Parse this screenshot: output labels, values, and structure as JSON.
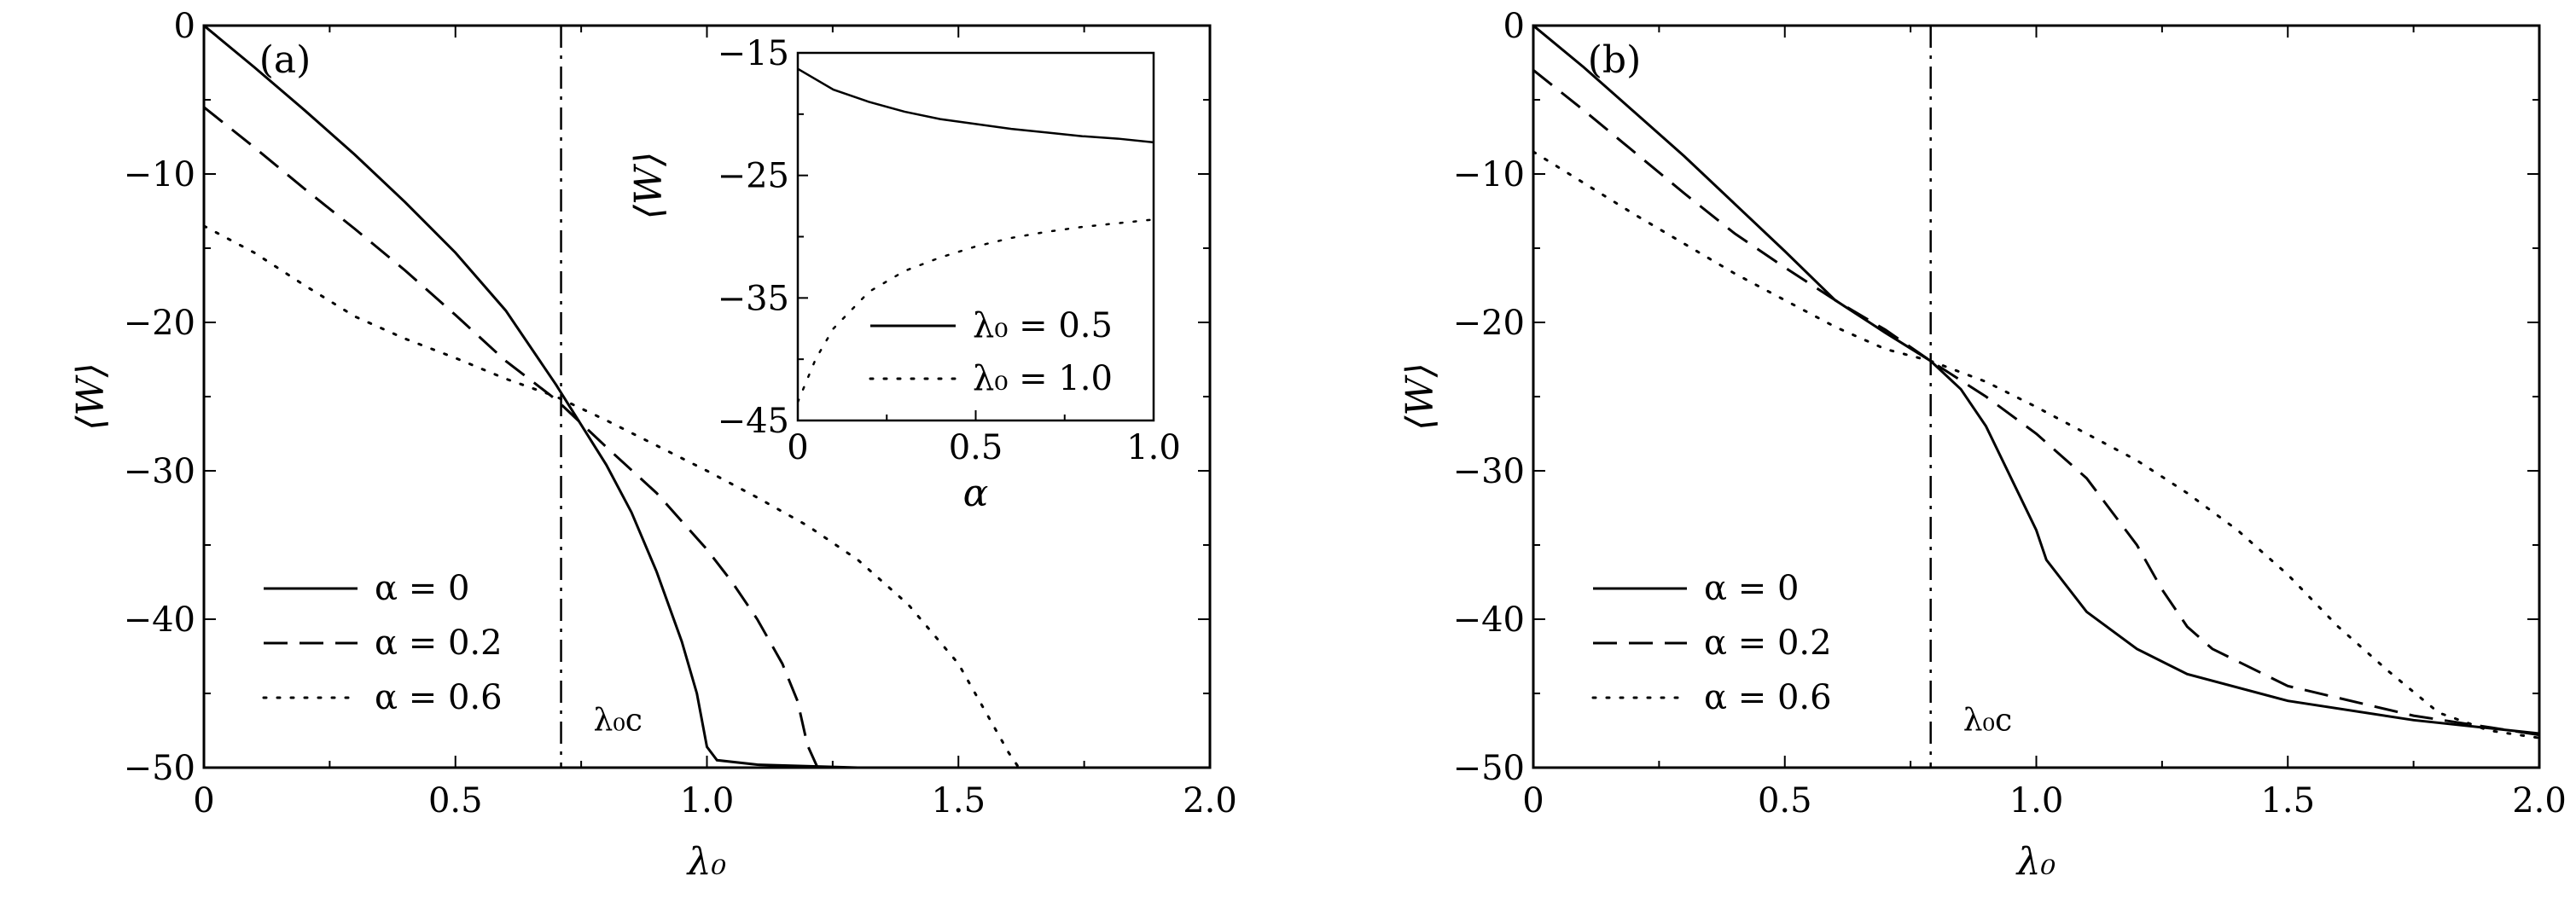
{
  "chart_data": [
    {
      "panel": "(a)",
      "type": "line",
      "xlabel": "λ₀",
      "ylabel": "⟨W⟩",
      "xlim": [
        0,
        2.0
      ],
      "ylim": [
        -50,
        0
      ],
      "xticks": [
        0,
        0.5,
        1.0,
        1.5,
        2.0
      ],
      "xtick_labels": [
        "0",
        "0.5",
        "1.0",
        "1.5",
        "2.0"
      ],
      "yticks": [
        0,
        -10,
        -20,
        -30,
        -40,
        -50
      ],
      "ytick_labels": [
        "0",
        "−10",
        "−20",
        "−30",
        "−40",
        "−50"
      ],
      "legend_position": "lower-left",
      "vline": {
        "x": 0.71,
        "label": "λ₀c"
      },
      "series": [
        {
          "name": "α = 0",
          "style": "solid",
          "points": [
            [
              0,
              0
            ],
            [
              0.1,
              -2.8
            ],
            [
              0.2,
              -5.7
            ],
            [
              0.3,
              -8.7
            ],
            [
              0.4,
              -11.9
            ],
            [
              0.5,
              -15.3
            ],
            [
              0.6,
              -19.2
            ],
            [
              0.7,
              -24.2
            ],
            [
              0.8,
              -29.6
            ],
            [
              0.85,
              -32.8
            ],
            [
              0.9,
              -36.8
            ],
            [
              0.95,
              -41.5
            ],
            [
              0.98,
              -45.0
            ],
            [
              1.0,
              -48.6
            ],
            [
              1.02,
              -49.5
            ],
            [
              1.1,
              -49.8
            ],
            [
              1.3,
              -50.0
            ],
            [
              1.6,
              -50.0
            ],
            [
              1.9,
              -50.0
            ]
          ]
        },
        {
          "name": "α = 0.2",
          "style": "dashed",
          "points": [
            [
              0,
              -5.5
            ],
            [
              0.1,
              -8.2
            ],
            [
              0.2,
              -11.0
            ],
            [
              0.3,
              -13.7
            ],
            [
              0.4,
              -16.5
            ],
            [
              0.5,
              -19.5
            ],
            [
              0.6,
              -22.6
            ],
            [
              0.7,
              -25.2
            ],
            [
              0.8,
              -28.4
            ],
            [
              0.9,
              -31.5
            ],
            [
              1.0,
              -35.3
            ],
            [
              1.05,
              -37.5
            ],
            [
              1.1,
              -40.0
            ],
            [
              1.15,
              -43.0
            ],
            [
              1.18,
              -45.5
            ],
            [
              1.2,
              -48.5
            ],
            [
              1.22,
              -50.0
            ],
            [
              1.4,
              -50.0
            ],
            [
              1.9,
              -50.0
            ]
          ]
        },
        {
          "name": "α = 0.6",
          "style": "dotted",
          "points": [
            [
              0,
              -13.5
            ],
            [
              0.1,
              -15.3
            ],
            [
              0.2,
              -17.5
            ],
            [
              0.3,
              -19.6
            ],
            [
              0.4,
              -21.1
            ],
            [
              0.5,
              -22.4
            ],
            [
              0.6,
              -23.8
            ],
            [
              0.7,
              -25.0
            ],
            [
              0.8,
              -26.6
            ],
            [
              0.9,
              -28.3
            ],
            [
              1.0,
              -30.0
            ],
            [
              1.1,
              -31.8
            ],
            [
              1.2,
              -33.7
            ],
            [
              1.3,
              -36.0
            ],
            [
              1.4,
              -39.0
            ],
            [
              1.5,
              -43.0
            ],
            [
              1.55,
              -46.0
            ],
            [
              1.6,
              -49.0
            ],
            [
              1.62,
              -50.0
            ]
          ]
        }
      ],
      "inset": {
        "xlabel": "α",
        "ylabel": "⟨W⟩",
        "xlim": [
          0,
          1.0
        ],
        "ylim": [
          -45,
          -15
        ],
        "xticks": [
          0,
          0.5,
          1.0
        ],
        "xtick_labels": [
          "0",
          "0.5",
          "1.0"
        ],
        "yticks": [
          -15,
          -25,
          -35,
          -45
        ],
        "ytick_labels": [
          "−15",
          "−25",
          "−35",
          "−45"
        ],
        "legend_position": "lower-right",
        "series": [
          {
            "name": "λ₀ = 0.5",
            "style": "solid",
            "points": [
              [
                0,
                -16.3
              ],
              [
                0.1,
                -18.0
              ],
              [
                0.2,
                -19.0
              ],
              [
                0.3,
                -19.8
              ],
              [
                0.4,
                -20.4
              ],
              [
                0.5,
                -20.8
              ],
              [
                0.6,
                -21.2
              ],
              [
                0.7,
                -21.5
              ],
              [
                0.8,
                -21.8
              ],
              [
                0.9,
                -22.0
              ],
              [
                1.0,
                -22.3
              ]
            ]
          },
          {
            "name": "λ₀ = 1.0",
            "style": "dotted",
            "points": [
              [
                0,
                -43.5
              ],
              [
                0.05,
                -40.0
              ],
              [
                0.1,
                -37.5
              ],
              [
                0.2,
                -34.5
              ],
              [
                0.3,
                -32.8
              ],
              [
                0.4,
                -31.7
              ],
              [
                0.5,
                -30.8
              ],
              [
                0.6,
                -30.1
              ],
              [
                0.7,
                -29.6
              ],
              [
                0.8,
                -29.2
              ],
              [
                0.9,
                -28.9
              ],
              [
                1.0,
                -28.6
              ]
            ]
          }
        ]
      }
    },
    {
      "panel": "(b)",
      "type": "line",
      "xlabel": "λ₀",
      "ylabel": "⟨W⟩",
      "xlim": [
        0,
        2.0
      ],
      "ylim": [
        -50,
        0
      ],
      "xticks": [
        0,
        0.5,
        1.0,
        1.5,
        2.0
      ],
      "xtick_labels": [
        "0",
        "0.5",
        "1.0",
        "1.5",
        "2.0"
      ],
      "yticks": [
        0,
        -10,
        -20,
        -30,
        -40,
        -50
      ],
      "ytick_labels": [
        "0",
        "−10",
        "−20",
        "−30",
        "−40",
        "−50"
      ],
      "legend_position": "lower-left",
      "vline": {
        "x": 0.79,
        "label": "λ₀c"
      },
      "series": [
        {
          "name": "α = 0",
          "style": "solid",
          "points": [
            [
              0,
              0
            ],
            [
              0.1,
              -2.8
            ],
            [
              0.2,
              -5.8
            ],
            [
              0.3,
              -8.8
            ],
            [
              0.4,
              -12.0
            ],
            [
              0.5,
              -15.2
            ],
            [
              0.6,
              -18.5
            ],
            [
              0.7,
              -20.7
            ],
            [
              0.79,
              -22.6
            ],
            [
              0.85,
              -24.5
            ],
            [
              0.9,
              -27.0
            ],
            [
              0.95,
              -30.5
            ],
            [
              1.0,
              -34.0
            ],
            [
              1.02,
              -36.0
            ],
            [
              1.1,
              -39.5
            ],
            [
              1.2,
              -42.0
            ],
            [
              1.3,
              -43.7
            ],
            [
              1.5,
              -45.5
            ],
            [
              1.75,
              -46.8
            ],
            [
              2.0,
              -47.7
            ]
          ]
        },
        {
          "name": "α = 0.2",
          "style": "dashed",
          "points": [
            [
              0,
              -3.0
            ],
            [
              0.1,
              -5.7
            ],
            [
              0.2,
              -8.5
            ],
            [
              0.3,
              -11.3
            ],
            [
              0.4,
              -14.0
            ],
            [
              0.5,
              -16.3
            ],
            [
              0.6,
              -18.5
            ],
            [
              0.7,
              -20.5
            ],
            [
              0.79,
              -22.6
            ],
            [
              0.9,
              -25.0
            ],
            [
              1.0,
              -27.5
            ],
            [
              1.1,
              -30.5
            ],
            [
              1.2,
              -35.0
            ],
            [
              1.25,
              -38.0
            ],
            [
              1.3,
              -40.5
            ],
            [
              1.35,
              -42.0
            ],
            [
              1.5,
              -44.5
            ],
            [
              1.75,
              -46.5
            ],
            [
              2.0,
              -47.8
            ]
          ]
        },
        {
          "name": "α = 0.6",
          "style": "dotted",
          "points": [
            [
              0,
              -8.5
            ],
            [
              0.1,
              -10.6
            ],
            [
              0.2,
              -12.7
            ],
            [
              0.3,
              -14.7
            ],
            [
              0.4,
              -16.7
            ],
            [
              0.5,
              -18.5
            ],
            [
              0.6,
              -20.3
            ],
            [
              0.7,
              -21.8
            ],
            [
              0.79,
              -22.6
            ],
            [
              0.9,
              -24.0
            ],
            [
              1.0,
              -25.7
            ],
            [
              1.1,
              -27.5
            ],
            [
              1.2,
              -29.3
            ],
            [
              1.3,
              -31.5
            ],
            [
              1.4,
              -34.0
            ],
            [
              1.5,
              -37.0
            ],
            [
              1.6,
              -40.5
            ],
            [
              1.7,
              -43.5
            ],
            [
              1.8,
              -46.3
            ],
            [
              1.9,
              -47.5
            ],
            [
              2.0,
              -48.0
            ]
          ]
        }
      ]
    }
  ]
}
